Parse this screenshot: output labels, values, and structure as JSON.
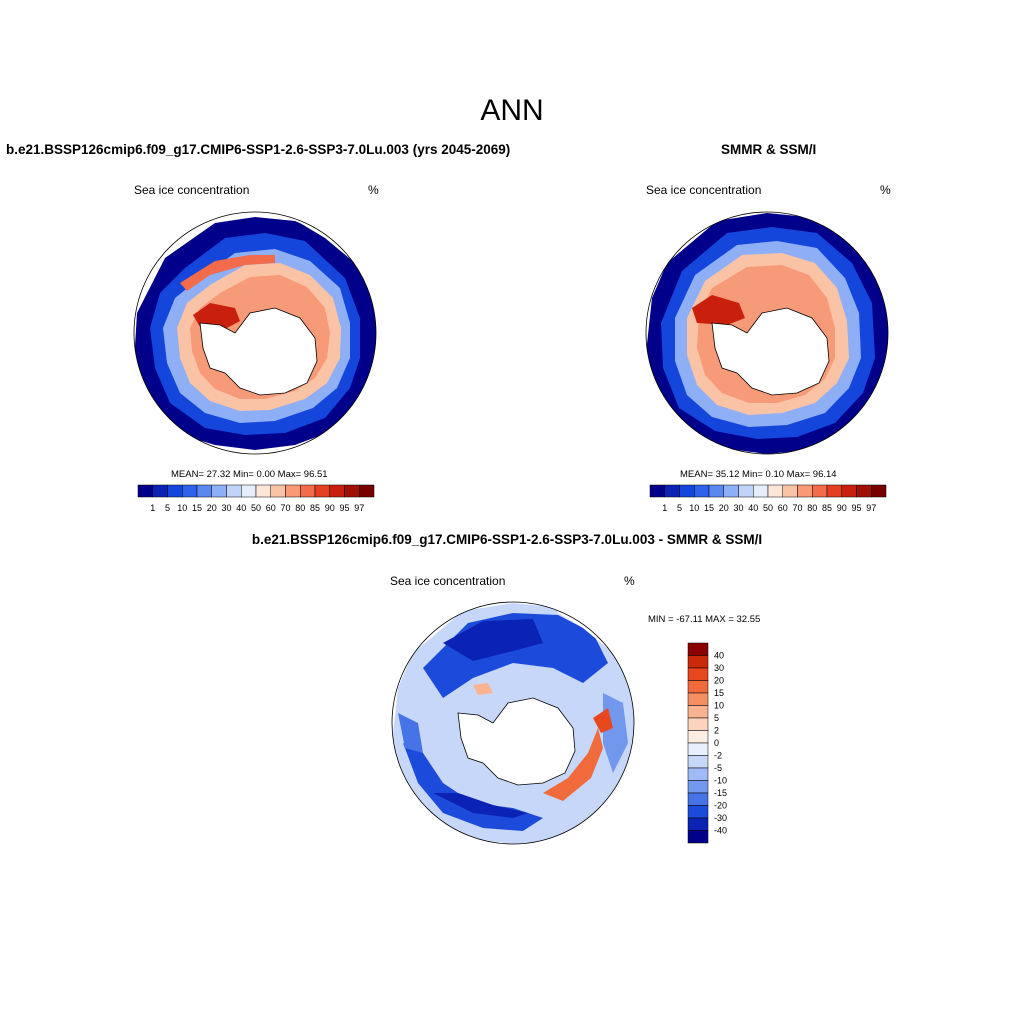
{
  "title": "ANN",
  "panels": {
    "model": {
      "title": "b.e21.BSSP126cmip6.f09_g17.CMIP6-SSP1-2.6-SSP3-7.0Lu.003 (yrs 2045-2069)",
      "variable": "Sea ice concentration",
      "units": "%",
      "stats": "MEAN=  27.32  Min=   0.00  Max=  96.51"
    },
    "obs": {
      "title": "SMMR & SSM/I",
      "variable": "Sea ice concentration",
      "units": "%",
      "stats": "MEAN=  35.12  Min=   0.10  Max=  96.14"
    },
    "diff": {
      "title": "b.e21.BSSP126cmip6.f09_g17.CMIP6-SSP1-2.6-SSP3-7.0Lu.003 - SMMR & SSM/I",
      "variable": "Sea ice concentration",
      "units": "%",
      "stats": "MIN = -67.11 MAX =  32.55"
    }
  },
  "colorbar_abs": {
    "labels": [
      "1",
      "5",
      "10",
      "15",
      "20",
      "30",
      "40",
      "50",
      "60",
      "70",
      "80",
      "85",
      "90",
      "95",
      "97"
    ],
    "colors": [
      "#00008b",
      "#0a23b4",
      "#1446dc",
      "#2e62eb",
      "#5a87f0",
      "#8eaef5",
      "#c2d3fa",
      "#e6eefd",
      "#fde6d8",
      "#fbc3a6",
      "#f79a78",
      "#f26b4a",
      "#e54020",
      "#c8200c",
      "#a01005",
      "#7a0000"
    ]
  },
  "colorbar_diff": {
    "labels": [
      "40",
      "30",
      "20",
      "15",
      "10",
      "5",
      "2",
      "0",
      "-2",
      "-5",
      "-10",
      "-15",
      "-20",
      "-30",
      "-40"
    ],
    "colors": [
      "#8b0000",
      "#c82a0a",
      "#e8461c",
      "#f06a3c",
      "#f58f62",
      "#f9b391",
      "#fcd3bc",
      "#fdeee4",
      "#e8effd",
      "#c7d7fa",
      "#9fbaf5",
      "#7298ee",
      "#4674e6",
      "#1c4bdb",
      "#0a23b4",
      "#00008b"
    ]
  }
}
